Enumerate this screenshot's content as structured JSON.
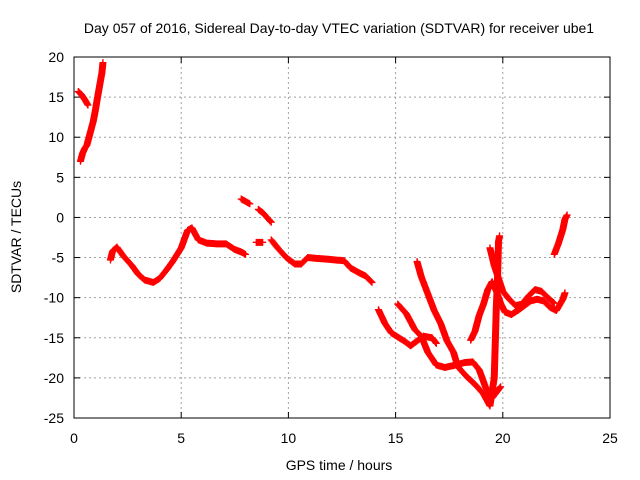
{
  "chart_data": {
    "type": "scatter",
    "title": "Day 057 of 2016, Sidereal Day-to-day VTEC variation (SDTVAR) for receiver ube1",
    "xlabel": "GPS time / hours",
    "ylabel": "SDTVAR / TECUs",
    "xlim": [
      0,
      25
    ],
    "ylim": [
      -25,
      20
    ],
    "xticks": [
      "0",
      "5",
      "10",
      "15",
      "20",
      "25"
    ],
    "yticks": [
      "-25",
      "-20",
      "-15",
      "-10",
      "-5",
      "0",
      "5",
      "10",
      "15",
      "20"
    ],
    "grid": true,
    "marker": "+",
    "series_color": "#ff0000",
    "segments": [
      [
        [
          0.2,
          15.7
        ],
        [
          0.35,
          15.3
        ],
        [
          0.5,
          14.7
        ],
        [
          0.65,
          14.0
        ]
      ],
      [
        [
          0.3,
          7.0
        ],
        [
          0.4,
          8.0
        ],
        [
          0.5,
          8.6
        ],
        [
          0.6,
          9.0
        ],
        [
          0.7,
          10.0
        ],
        [
          0.8,
          11.0
        ],
        [
          0.9,
          12.0
        ],
        [
          1.0,
          13.4
        ],
        [
          1.1,
          15.0
        ],
        [
          1.2,
          16.5
        ],
        [
          1.3,
          18.0
        ],
        [
          1.35,
          19.3
        ]
      ],
      [
        [
          1.7,
          -5.3
        ],
        [
          1.8,
          -4.2
        ],
        [
          2.0,
          -3.7
        ],
        [
          2.3,
          -4.8
        ],
        [
          2.7,
          -6.0
        ],
        [
          3.0,
          -7.1
        ],
        [
          3.3,
          -7.8
        ],
        [
          3.7,
          -8.1
        ],
        [
          4.0,
          -7.6
        ],
        [
          4.3,
          -6.6
        ],
        [
          4.6,
          -5.5
        ],
        [
          5.0,
          -3.8
        ],
        [
          5.3,
          -1.6
        ],
        [
          5.5,
          -1.3
        ],
        [
          5.8,
          -2.8
        ],
        [
          6.2,
          -3.2
        ],
        [
          6.7,
          -3.3
        ],
        [
          7.1,
          -3.3
        ],
        [
          7.5,
          -4.0
        ],
        [
          7.8,
          -4.3
        ],
        [
          8.0,
          -4.6
        ]
      ],
      [
        [
          7.8,
          2.3
        ],
        [
          8.0,
          2.0
        ],
        [
          8.2,
          1.7
        ]
      ],
      [
        [
          8.6,
          1.0
        ],
        [
          8.8,
          0.6
        ],
        [
          9.0,
          0.0
        ],
        [
          9.2,
          -0.6
        ]
      ],
      [
        [
          8.5,
          -3.1
        ],
        [
          8.7,
          -3.1
        ],
        [
          8.8,
          -3.1
        ]
      ],
      [
        [
          9.2,
          -2.8
        ],
        [
          9.5,
          -3.8
        ],
        [
          9.9,
          -5.0
        ],
        [
          10.3,
          -5.8
        ],
        [
          10.6,
          -5.8
        ],
        [
          10.9,
          -5.0
        ],
        [
          11.3,
          -5.1
        ],
        [
          11.8,
          -5.2
        ],
        [
          12.2,
          -5.3
        ],
        [
          12.6,
          -5.4
        ],
        [
          12.9,
          -6.3
        ],
        [
          13.3,
          -6.9
        ],
        [
          13.6,
          -7.3
        ],
        [
          13.9,
          -8.1
        ]
      ],
      [
        [
          14.2,
          -11.5
        ],
        [
          14.5,
          -13.2
        ],
        [
          14.8,
          -14.4
        ],
        [
          15.1,
          -14.9
        ],
        [
          15.4,
          -15.4
        ],
        [
          15.7,
          -16.0
        ],
        [
          16.0,
          -15.4
        ],
        [
          16.3,
          -14.8
        ],
        [
          16.7,
          -15.0
        ],
        [
          16.9,
          -15.7
        ]
      ],
      [
        [
          15.1,
          -10.8
        ],
        [
          15.5,
          -12.0
        ],
        [
          15.9,
          -14.0
        ],
        [
          16.2,
          -14.8
        ],
        [
          16.5,
          -16.8
        ],
        [
          16.9,
          -18.4
        ],
        [
          17.3,
          -18.7
        ],
        [
          17.8,
          -18.4
        ],
        [
          18.2,
          -18.1
        ],
        [
          18.6,
          -18.0
        ],
        [
          18.9,
          -19.0
        ],
        [
          19.2,
          -21.2
        ],
        [
          19.5,
          -22.5
        ],
        [
          19.7,
          -21.8
        ],
        [
          19.9,
          -21.1
        ]
      ],
      [
        [
          16.0,
          -5.5
        ],
        [
          16.2,
          -7.4
        ],
        [
          16.5,
          -9.5
        ],
        [
          16.8,
          -11.6
        ],
        [
          17.1,
          -13.2
        ],
        [
          17.4,
          -15.4
        ],
        [
          17.7,
          -16.8
        ],
        [
          17.9,
          -18.6
        ],
        [
          18.3,
          -19.8
        ],
        [
          18.7,
          -20.8
        ],
        [
          19.1,
          -22.0
        ],
        [
          19.4,
          -23.5
        ],
        [
          19.6,
          -20.0
        ],
        [
          19.7,
          -11.0
        ],
        [
          19.75,
          -8.0
        ],
        [
          19.8,
          -3.0
        ],
        [
          19.85,
          -2.3
        ]
      ],
      [
        [
          18.5,
          -15.3
        ],
        [
          18.7,
          -14.2
        ],
        [
          18.9,
          -12.2
        ],
        [
          19.1,
          -10.8
        ],
        [
          19.3,
          -9.0
        ],
        [
          19.5,
          -8.0
        ],
        [
          19.7,
          -9.2
        ],
        [
          19.9,
          -10.7
        ],
        [
          20.1,
          -11.8
        ],
        [
          20.4,
          -12.1
        ],
        [
          20.7,
          -11.6
        ],
        [
          21.0,
          -11.0
        ],
        [
          21.3,
          -10.4
        ],
        [
          21.6,
          -10.2
        ],
        [
          21.9,
          -10.4
        ],
        [
          22.2,
          -11.2
        ],
        [
          22.5,
          -11.6
        ],
        [
          22.8,
          -10.2
        ],
        [
          22.9,
          -9.4
        ]
      ],
      [
        [
          19.4,
          -3.8
        ],
        [
          19.6,
          -6.0
        ],
        [
          19.8,
          -7.6
        ],
        [
          20.0,
          -9.2
        ],
        [
          20.3,
          -10.2
        ],
        [
          20.6,
          -11.0
        ],
        [
          20.9,
          -10.8
        ],
        [
          21.2,
          -9.8
        ],
        [
          21.5,
          -9.0
        ],
        [
          21.8,
          -9.2
        ],
        [
          22.1,
          -10.0
        ],
        [
          22.4,
          -10.7
        ]
      ],
      [
        [
          22.4,
          -4.6
        ],
        [
          22.6,
          -3.2
        ],
        [
          22.8,
          -1.5
        ],
        [
          22.9,
          -0.2
        ],
        [
          23.0,
          0.3
        ]
      ]
    ]
  }
}
